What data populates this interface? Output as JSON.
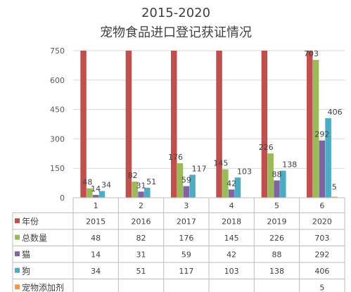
{
  "chart_data": {
    "type": "bar",
    "title": "2015-2020",
    "subtitle": "宠物食品进口登记获证情况",
    "categories": [
      "1",
      "2",
      "3",
      "4",
      "5",
      "6"
    ],
    "ylim": [
      0,
      750
    ],
    "yticks": [
      0,
      150,
      300,
      450,
      600,
      750
    ],
    "grid": true,
    "legend": "table",
    "series": [
      {
        "name": "年份",
        "color": "#c0504d",
        "values": [
          2015,
          2016,
          2017,
          2018,
          2019,
          2020
        ]
      },
      {
        "name": "总数量",
        "color": "#9bbb59",
        "values": [
          48,
          82,
          176,
          145,
          226,
          703
        ]
      },
      {
        "name": "猫",
        "color": "#8064a2",
        "values": [
          14,
          31,
          59,
          42,
          88,
          292
        ]
      },
      {
        "name": "狗",
        "color": "#4bacc6",
        "values": [
          34,
          51,
          117,
          103,
          138,
          406
        ]
      },
      {
        "name": "宠物添加剂",
        "color": "#f79646",
        "values": [
          null,
          null,
          null,
          null,
          null,
          5
        ]
      }
    ]
  }
}
